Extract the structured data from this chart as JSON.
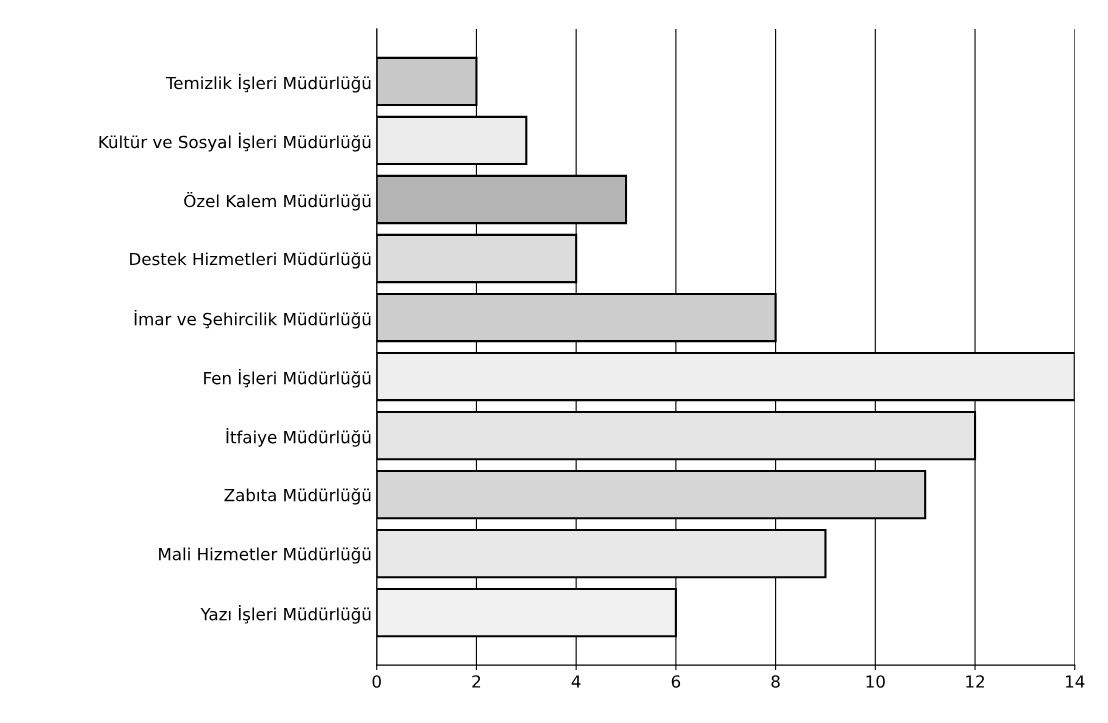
{
  "chart_data": {
    "type": "bar",
    "orientation": "horizontal",
    "categories": [
      "Temizlik İşleri Müdürlüğü",
      "Kültür ve Sosyal İşleri Müdürlüğü",
      "Özel Kalem Müdürlüğü",
      "Destek Hizmetleri Müdürlüğü",
      "İmar ve Şehircilik Müdürlüğü",
      "Fen İşleri Müdürlüğü",
      "İtfaiye Müdürlüğü",
      "Zabıta Müdürlüğü",
      "Mali Hizmetler Müdürlüğü",
      "Yazı İşleri Müdürlüğü"
    ],
    "values": [
      2,
      3,
      5,
      4,
      8,
      14,
      12,
      11,
      9,
      6
    ],
    "colors": [
      "#c8c8c8",
      "#ececec",
      "#b4b4b4",
      "#dcdcdc",
      "#cdcdcd",
      "#eeeeee",
      "#e4e4e4",
      "#d6d6d6",
      "#e8e8e8",
      "#f0f0f0"
    ],
    "xlim": [
      0,
      14
    ],
    "xticks": [
      0,
      2,
      4,
      6,
      8,
      10,
      12,
      14
    ],
    "grid": "x"
  }
}
